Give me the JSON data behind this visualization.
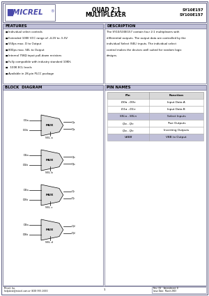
{
  "page_bg": "#ffffff",
  "title_part1": "QUAD 2:1",
  "title_part2": "MULTIPLEXER",
  "part_num1": "SY10E157",
  "part_num2": "SY100E157",
  "features_title": "FEATURES",
  "features": [
    "Individual select controls",
    "Extended 100E VCC range of -4.2V to -5.5V",
    "550ps max. D to Output",
    "800ps max. SEL to Output",
    "Internal 75KΩ input pull-down resistors",
    "Fully compatible with industry standard 10KH,",
    "  100K ECL levels",
    "Available in 28-pin PLCC package"
  ],
  "desc_title": "DESCRIPTION",
  "desc_lines": [
    "The SY10/100E157 contain four 2:1 multiplexers with",
    "differential outputs. The output data are controlled by the",
    "individual Select (SEL) inputs. The individual select",
    "control makes the devices well suited for random logic",
    "designs."
  ],
  "block_title": "BLOCK  DIAGRAM",
  "pin_title": "PIN NAMES",
  "pin_headers": [
    "Pin",
    "Function"
  ],
  "pin_rows": [
    [
      "D0a - D0n",
      "Input Data A",
      false
    ],
    [
      "D1a - D1n",
      "Input Data B",
      false
    ],
    [
      "SELa - SELn",
      "Select Inputs",
      true
    ],
    [
      "Qa - Qn",
      "True Outputs",
      false
    ],
    [
      "Qa - Qn",
      "Inverting Outputs",
      false
    ],
    [
      "VBBB",
      "VBB to Output",
      true
    ]
  ],
  "footer_left1": "Micrel, Inc.",
  "footer_left2": "helpdesk@micrel.com or (408) 955-1690",
  "footer_mid": "1",
  "footer_right1": "Rev.: D1    Amendment: D",
  "footer_right2": "Issue Date:  March 2003",
  "section_title_bg": "#c0c0d8",
  "pin_header_bg": "#d8d8d8",
  "pin_sel_bg": "#c0c0d8",
  "mux_color": "#e0e0e0",
  "watermark_color": "#d4a84b",
  "border_color": "#666688",
  "mux_labels": [
    {
      "inputs": [
        "a",
        "b"
      ],
      "sel": "SEL a",
      "q": "Qa",
      "qb": "Qa"
    },
    {
      "inputs": [
        "a",
        "b"
      ],
      "sel": "SEL b",
      "q": "Qb",
      "qb": "Qb"
    },
    {
      "inputs": [
        "a",
        "b"
      ],
      "sel": "SEL c",
      "q": "Qc",
      "qb": "Qc"
    },
    {
      "inputs": [
        "a",
        "b"
      ],
      "sel": "SEL d",
      "q": "Qd",
      "qb": "Qd"
    }
  ]
}
